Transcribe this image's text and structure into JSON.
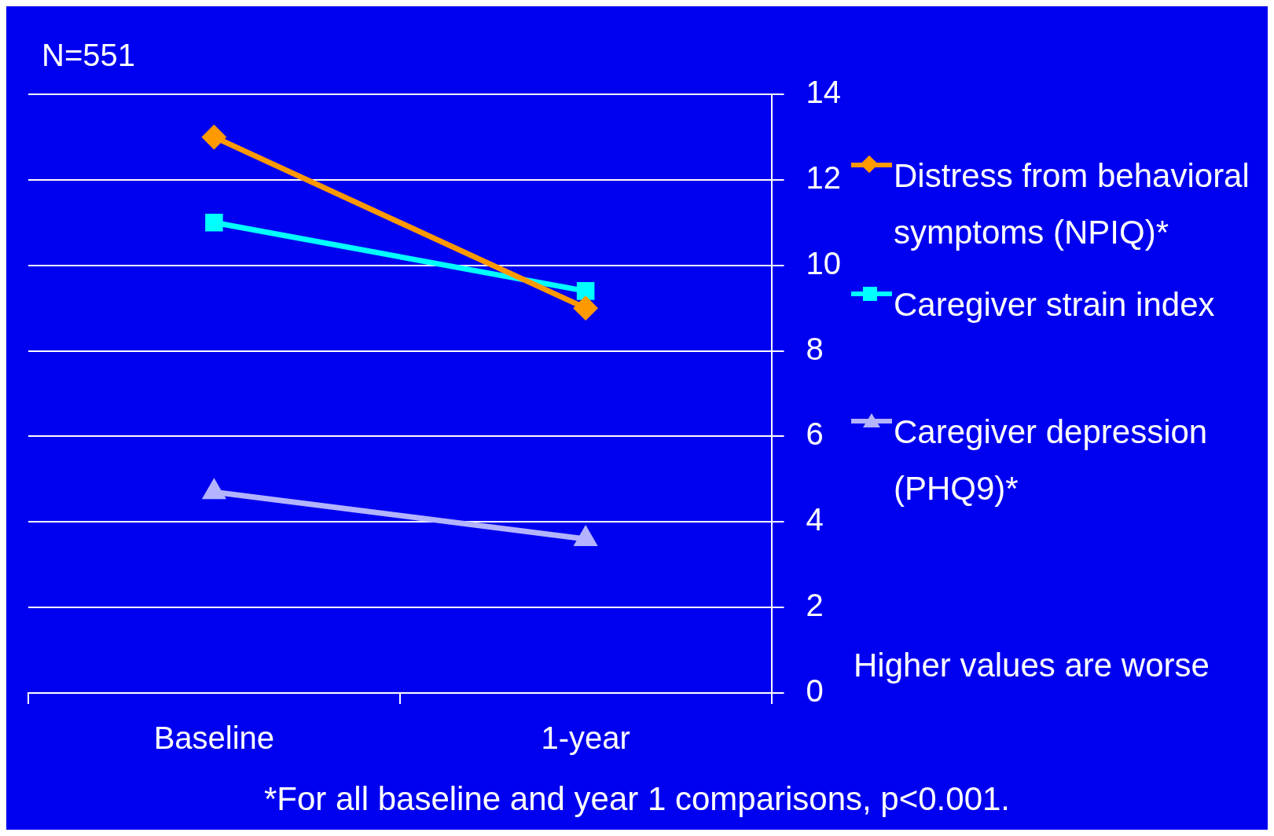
{
  "chart_data": {
    "type": "line",
    "categories": [
      "Baseline",
      "1-year"
    ],
    "series": [
      {
        "name": "Distress from behavioral symptoms (NPIQ)*",
        "color": "#ff9900",
        "values": [
          13.0,
          9.0
        ],
        "marker": "diamond"
      },
      {
        "name": "Caregiver strain index",
        "color": "#00ffff",
        "values": [
          11.0,
          9.4
        ],
        "marker": "square"
      },
      {
        "name": "Caregiver depression (PHQ9)*",
        "color": "#b3b3ff",
        "values": [
          4.7,
          3.6
        ],
        "marker": "triangle"
      }
    ],
    "ylim": [
      0,
      14
    ],
    "yticks": [
      0,
      2,
      4,
      6,
      8,
      10,
      12,
      14
    ],
    "grid": "y",
    "legend": "right",
    "annotations": [
      "N=551",
      "Higher values are worse",
      "*For all baseline and year 1 comparisons, p<0.001."
    ]
  }
}
